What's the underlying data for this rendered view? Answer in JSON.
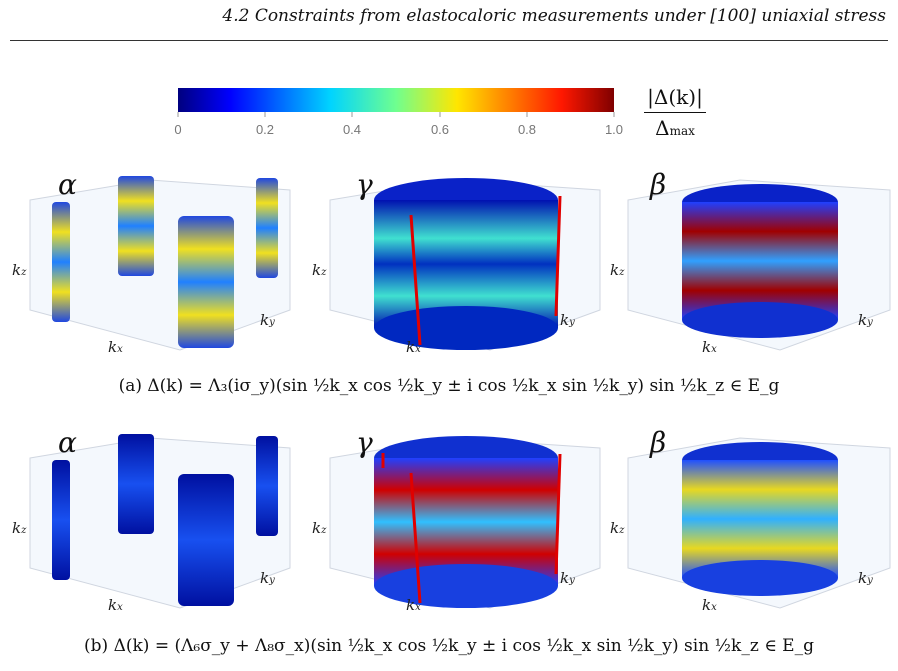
{
  "header": "4.2 Constraints from elastocaloric measurements under [100] uniaxial stress",
  "colorbar": {
    "ticks": [
      "0",
      "0.2",
      "0.4",
      "0.6",
      "0.8",
      "1.0"
    ],
    "label_numerator": "|Δ(k)|",
    "label_denominator": "Δ",
    "label_denominator_sub": "max",
    "colormap": "jet"
  },
  "panels": {
    "labels": [
      "α",
      "γ",
      "β"
    ],
    "axis_kx": "k",
    "axis_kx_sub": "x",
    "axis_ky": "k",
    "axis_ky_sub": "y",
    "axis_kz": "k",
    "axis_kz_sub": "z"
  },
  "caption_a": "(a) Δ(k) = Λ₃(iσ_y)(sin ½k_x cos ½k_y ± i cos ½k_x sin ½k_y) sin ½k_z ∈ E_g",
  "caption_b": "(b) Δ(k) = (Λ₆σ_y + Λ₈σ_x)(sin ½k_x cos ½k_y ± i cos ½k_x sin ½k_y) sin ½k_z ∈ E_g",
  "row_a_colors": {
    "alpha": "#f2dd16",
    "gamma": "#2fd0e0",
    "beta": "#a40000"
  },
  "row_b_colors": {
    "alpha": "#1030d0",
    "gamma": "#c00000",
    "beta": "#e8d820"
  }
}
